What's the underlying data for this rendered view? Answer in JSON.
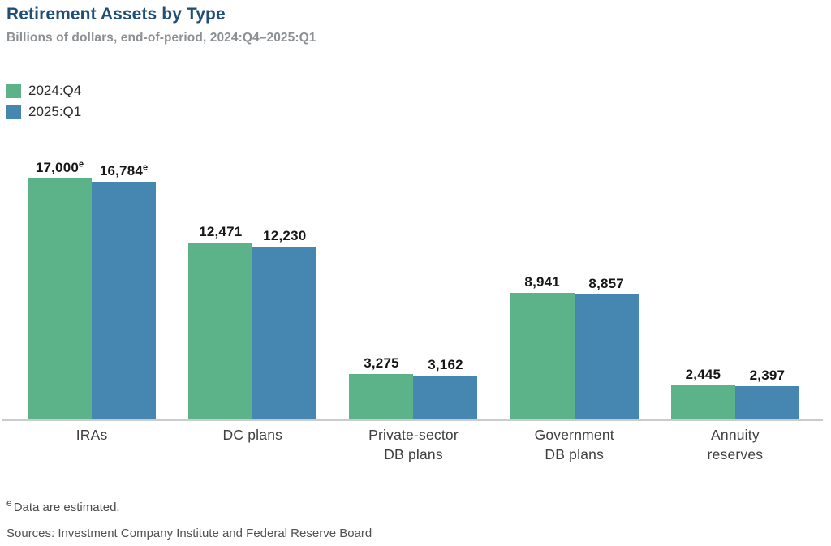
{
  "header": {
    "title": "Retirement Assets by Type",
    "subtitle": "Billions of dollars, end-of-period, 2024:Q4–2025:Q1"
  },
  "chart_data": {
    "type": "bar",
    "title": "Retirement Assets by Type",
    "subtitle": "Billions of dollars, end-of-period, 2024:Q4–2025:Q1",
    "unit": "Billions of dollars",
    "categories": [
      "IRAs",
      "DC plans",
      "Private-sector DB plans",
      "Government DB plans",
      "Annuity reserves"
    ],
    "category_lines": [
      [
        "IRAs"
      ],
      [
        "DC plans"
      ],
      [
        "Private-sector",
        "DB plans"
      ],
      [
        "Government",
        "DB plans"
      ],
      [
        "Annuity",
        "reserves"
      ]
    ],
    "series": [
      {
        "name": "2024:Q4",
        "color": "#5cb389",
        "values": [
          17000,
          12471,
          3275,
          8941,
          2445
        ],
        "display_labels": [
          "17,000",
          "12,471",
          "3,275",
          "8,941",
          "2,445"
        ],
        "estimated_flags": [
          true,
          false,
          false,
          false,
          false
        ]
      },
      {
        "name": "2025:Q1",
        "color": "#4587b0",
        "values": [
          16784,
          12230,
          3162,
          8857,
          2397
        ],
        "display_labels": [
          "16,784",
          "12,230",
          "3,162",
          "8,857",
          "2,397"
        ],
        "estimated_flags": [
          true,
          false,
          false,
          false,
          false
        ]
      }
    ],
    "ylim": [
      0,
      17000
    ],
    "grid": false,
    "y_axis_shown": false,
    "legend_position": "top-left",
    "estimated_marker": "e"
  },
  "footnotes": {
    "estimated_marker": "e",
    "estimated_text": "Data are estimated.",
    "sources": "Sources: Investment Company Institute and Federal Reserve Board"
  },
  "colors": {
    "title": "#1f4e79",
    "series_2024_q4": "#5cb389",
    "series_2025_q1": "#4587b0",
    "axis_line": "#c9cbcd"
  }
}
